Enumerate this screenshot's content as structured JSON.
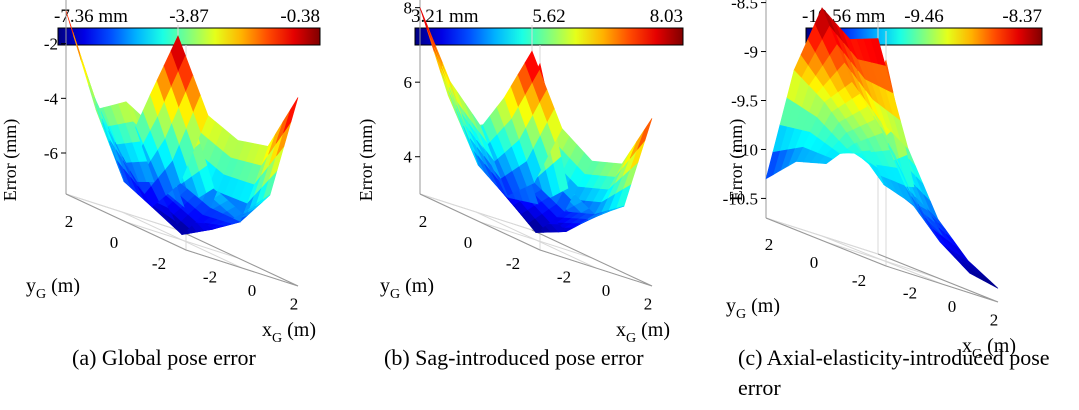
{
  "chart_data": [
    {
      "type": "surface",
      "panel_id": "a",
      "caption": "(a) Global pose error",
      "colorbar": {
        "labels": [
          "-7.36 mm",
          "-3.87",
          "-0.38"
        ],
        "min": -7.36,
        "max": -0.38
      },
      "zlabel": "Error (mm)",
      "zticks": [
        "-2",
        "-4",
        "-6"
      ],
      "xlabel": {
        "main": "x",
        "sub": "G",
        "unit": " (m)"
      },
      "ylabel": {
        "main": "y",
        "sub": "G",
        "unit": " (m)"
      },
      "x_ticks": [
        "-2",
        "0",
        "2"
      ],
      "y_ticks": [
        "2",
        "0",
        "-2"
      ],
      "x": [
        -2.7,
        -1.35,
        0,
        1.35,
        2.7
      ],
      "y": [
        -2.7,
        -1.35,
        0,
        1.35,
        2.7
      ],
      "z": [
        [
          -2.0,
          -4.9,
          -5.5,
          -4.5,
          -0.6
        ],
        [
          -3.6,
          -6.1,
          -6.6,
          -6.0,
          -2.9
        ],
        [
          -3.1,
          -5.7,
          -7.3,
          -6.0,
          -3.2
        ],
        [
          -3.9,
          -6.2,
          -6.8,
          -5.6,
          -2.8
        ],
        [
          -0.8,
          -3.6,
          -5.5,
          -2.9,
          -0.4
        ]
      ],
      "zlim": [
        -7.5,
        0
      ],
      "zrange_shown": [
        -7.36,
        -0.38
      ]
    },
    {
      "type": "surface",
      "panel_id": "b",
      "caption": "(b) Sag-introduced pose error",
      "colorbar": {
        "labels": [
          "3.21 mm",
          "5.62",
          "8.03"
        ],
        "min": 3.21,
        "max": 8.03
      },
      "zlabel": "Error (mm)",
      "zticks": [
        "8",
        "6",
        "4"
      ],
      "xlabel": {
        "main": "x",
        "sub": "G",
        "unit": " (m)"
      },
      "ylabel": {
        "main": "y",
        "sub": "G",
        "unit": " (m)"
      },
      "x_ticks": [
        "-2",
        "0",
        "2"
      ],
      "y_ticks": [
        "2",
        "0",
        "-2"
      ],
      "x": [
        -2.7,
        -1.35,
        0,
        1.35,
        2.7
      ],
      "y": [
        -2.7,
        -1.35,
        0,
        1.35,
        2.7
      ],
      "z": [
        [
          8.0,
          4.9,
          4.4,
          4.9,
          7.5
        ],
        [
          6.1,
          4.1,
          3.6,
          4.3,
          5.9
        ],
        [
          5.6,
          3.9,
          3.2,
          4.0,
          5.6
        ],
        [
          6.4,
          4.4,
          3.8,
          4.4,
          6.1
        ],
        [
          8.0,
          5.9,
          5.1,
          6.3,
          7.8
        ]
      ],
      "zlim": [
        3,
        8.5
      ],
      "zrange_shown": [
        3.21,
        8.03
      ]
    },
    {
      "type": "surface",
      "panel_id": "c",
      "caption": "(c) Axial-elasticity-introduced pose error",
      "colorbar": {
        "labels": [
          "-10.56 mm",
          "-9.46",
          "-8.37"
        ],
        "min": -10.56,
        "max": -8.37
      },
      "zlabel": "Error (mm)",
      "zticks": [
        "-8.5",
        "-9",
        "-9.5",
        "-10",
        "-10.5"
      ],
      "xlabel": {
        "main": "x",
        "sub": "G",
        "unit": " (m)"
      },
      "ylabel": {
        "main": "y",
        "sub": "G",
        "unit": " (m)"
      },
      "x_ticks": [
        "-2",
        "0",
        "2"
      ],
      "y_ticks": [
        "2",
        "0",
        "-2"
      ],
      "x": [
        -2.7,
        -1.35,
        0,
        1.35,
        2.7
      ],
      "y": [
        -2.7,
        -1.35,
        0,
        1.35,
        2.7
      ],
      "z": [
        [
          -8.6,
          -9.8,
          -10.2,
          -10.5,
          -10.56
        ],
        [
          -9.3,
          -9.9,
          -10.0,
          -10.3,
          -10.4
        ],
        [
          -9.9,
          -9.6,
          -9.4,
          -9.9,
          -10.1
        ],
        [
          -10.0,
          -9.3,
          -9.0,
          -9.3,
          -9.5
        ],
        [
          -10.3,
          -9.1,
          -8.37,
          -8.6,
          -8.5
        ]
      ],
      "zlim": [
        -10.7,
        -8.3
      ],
      "zrange_shown": [
        -10.56,
        -8.37
      ]
    }
  ]
}
